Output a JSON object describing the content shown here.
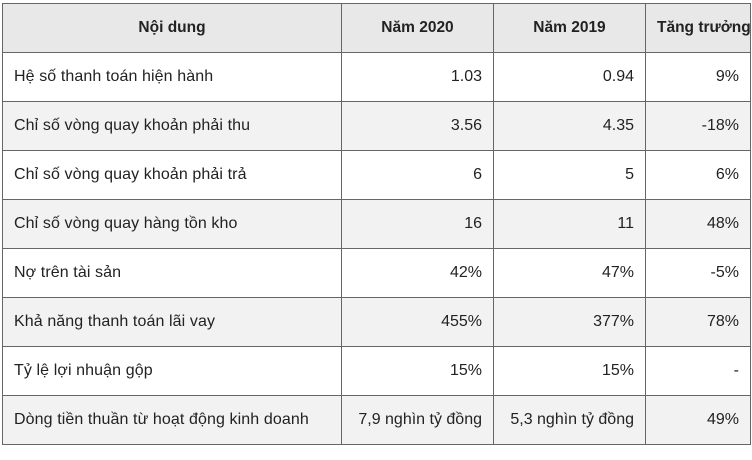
{
  "table": {
    "headers": [
      "Nội dung",
      "Năm 2020",
      "Năm 2019",
      "Tăng trưởng"
    ],
    "rows": [
      {
        "label": "Hệ số thanh toán hiện hành",
        "y2020": "1.03",
        "y2019": "0.94",
        "growth": "9%"
      },
      {
        "label": "Chỉ số vòng quay khoản phải thu",
        "y2020": "3.56",
        "y2019": "4.35",
        "growth": "-18%"
      },
      {
        "label": "Chỉ số vòng quay khoản phải trả",
        "y2020": "6",
        "y2019": "5",
        "growth": "6%"
      },
      {
        "label": "Chỉ số vòng quay hàng tồn kho",
        "y2020": "16",
        "y2019": "11",
        "growth": "48%"
      },
      {
        "label": "Nợ trên tài sản",
        "y2020": "42%",
        "y2019": "47%",
        "growth": "-5%"
      },
      {
        "label": "Khả năng thanh toán lãi vay",
        "y2020": "455%",
        "y2019": "377%",
        "growth": "78%"
      },
      {
        "label": "Tỷ lệ lợi nhuận gộp",
        "y2020": "15%",
        "y2019": "15%",
        "growth": "-"
      },
      {
        "label": "Dòng tiền thuần từ hoạt động kinh doanh",
        "y2020": "7,9 nghìn tỷ đồng",
        "y2019": "5,3 nghìn tỷ đồng",
        "growth": "49%"
      }
    ]
  },
  "colors": {
    "header_bg": "#e8e8e8",
    "alt_row_bg": "#f2f2f2",
    "border": "#666666",
    "text": "#222222"
  }
}
